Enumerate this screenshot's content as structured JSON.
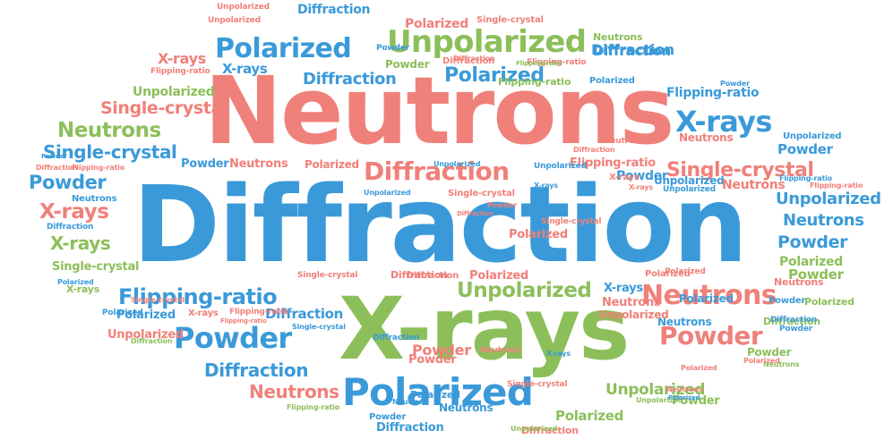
{
  "word_cloud": {
    "palette": {
      "blue": "#3a9ad9",
      "red": "#f0807a",
      "green": "#8cbf5a"
    },
    "words": [
      "Diffraction",
      "Neutrons",
      "X-rays",
      "Polarized",
      "Unpolarized",
      "Single-crystal",
      "Flipping-ratio",
      "Powder",
      "Diffraction",
      "X-rays",
      "Powder",
      "Neutrons",
      "Polarized",
      "Single-crystal",
      "Unpolarized",
      "Flipping-ratio",
      "Neutrons",
      "Unpolarized",
      "Polarized",
      "Diffraction",
      "Diffraction",
      "Neutrons",
      "X-rays",
      "Powder",
      "X-rays",
      "Polarized",
      "Unpolarized",
      "Diffraction",
      "Powder",
      "Neutrons",
      "Powder",
      "X-rays",
      "Single-crystal",
      "Neutrons",
      "Powder",
      "Polarized",
      "Powder",
      "Unpolarized",
      "Polarized",
      "Diffraction",
      "Polarized",
      "Powder",
      "Flipping-ratio",
      "Diffraction",
      "Unpolarized",
      "Neutrons",
      "Neutrons",
      "Powder",
      "Flipping-ratio",
      "X-rays",
      "Diffraction",
      "Single-crystal",
      "Unpolarized",
      "Diffraction",
      "Neutrons",
      "Polarized",
      "Flipping-ratio",
      "Diffraction",
      "Neutrons",
      "X-rays",
      "Powder",
      "Neutrons",
      "Unpolarized",
      "Flipping-ratio",
      "Unpolarized",
      "Polarized",
      "Diffraction",
      "Single-crystal",
      "Polarized",
      "Powder",
      "Unpolarized",
      "Flipping-ratio",
      "Single-crystal",
      "Diffraction",
      "Polarized",
      "Polarized",
      "Single-crystal",
      "Neutrons",
      "Diffraction",
      "Polarized",
      "Neutrons",
      "Powder",
      "Flipping-ratio",
      "Unpolarized",
      "Flipping-ratio",
      "Diffraction",
      "Powder",
      "Polarized",
      "Flipping-ratio",
      "X-rays",
      "Single-crystal",
      "Single-crystal",
      "Powder",
      "Unpolarized",
      "Polarized",
      "Diffraction",
      "Powder",
      "Single-crystal",
      "Flipping-ratio",
      "Diffraction",
      "Polarized",
      "Neutrons",
      "Neutrons",
      "Unpolarized",
      "Powder",
      "Diffraction",
      "X-rays",
      "Polarized",
      "Single-crystal",
      "Flipping-ratio",
      "Diffraction",
      "Powder",
      "X-rays",
      "Unpolarized",
      "Diffraction",
      "Polarized",
      "Unpolarized",
      "Diffraction",
      "Powder",
      "Neutrons",
      "Polarized",
      "Flipping-ratio",
      "Diffraction",
      "Unpolarized",
      "Neutrons",
      "X-rays",
      "Polarized",
      "Powder",
      "X-rays",
      "Unpolarized",
      "Neutrons",
      "Neutrons",
      "Powder",
      "X-rays",
      "Polarized",
      "Diffraction",
      "Unpolarized",
      "Polarized",
      "Polarized",
      "Unpolarized"
    ]
  }
}
